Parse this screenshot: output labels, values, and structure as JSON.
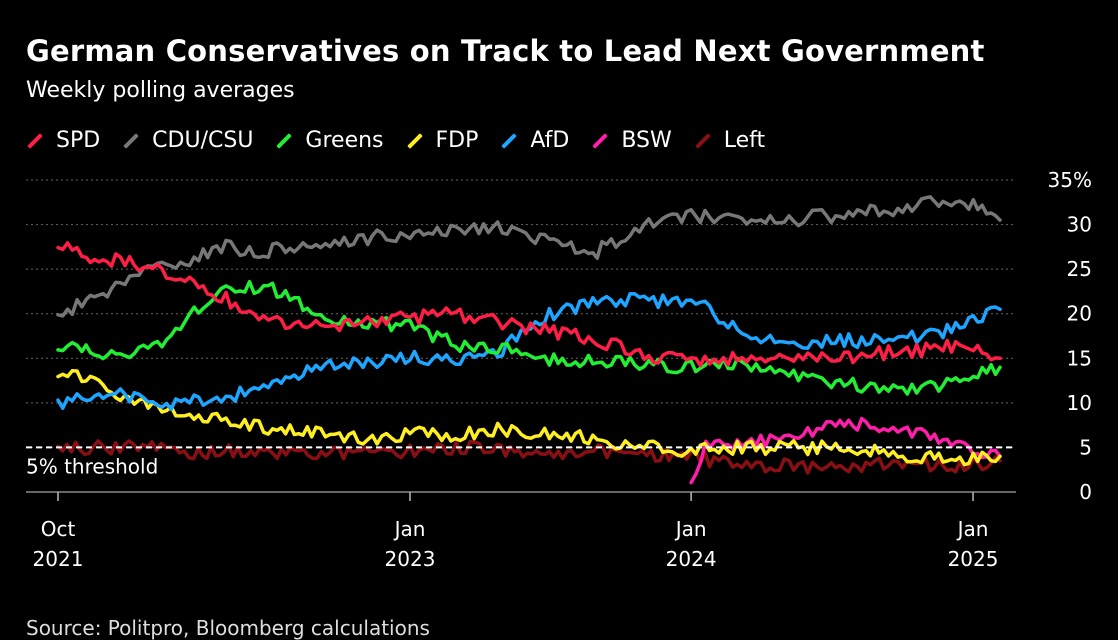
{
  "title": "German Conservatives on Track to Lead Next Government",
  "subtitle": "Weekly polling averages",
  "source": "Source: Politpro, Bloomberg calculations",
  "colors": {
    "SPD": "#ff1e46",
    "CDU/CSU": "#777777",
    "Greens": "#22ee33",
    "FDP": "#ffee22",
    "AfD": "#1ea5ff",
    "BSW": "#ff1eaa",
    "Left": "#8a0f14"
  },
  "chart_data": {
    "type": "line",
    "title": "German Conservatives on Track to Lead Next Government",
    "subtitle": "Weekly polling averages",
    "xlim": [
      "2021-10-01",
      "2025-02-15"
    ],
    "ylim": [
      0,
      35
    ],
    "y_ticks": [
      0,
      5,
      10,
      15,
      20,
      25,
      30,
      35
    ],
    "y_tick_labels": [
      "0",
      "5",
      "10",
      "15",
      "20",
      "25",
      "30",
      "35%"
    ],
    "x_ticks": [
      {
        "date": "2021-10-01",
        "label": "Oct",
        "year": "2021"
      },
      {
        "date": "2023-01-01",
        "label": "Jan",
        "year": "2023"
      },
      {
        "date": "2024-01-01",
        "label": "Jan",
        "year": "2024"
      },
      {
        "date": "2025-01-01",
        "label": "Jan",
        "year": "2025"
      }
    ],
    "grid": true,
    "legend_position": "top-left",
    "annotations": [
      {
        "text": "5% threshold",
        "y": 5
      }
    ],
    "series": [
      {
        "name": "SPD",
        "points": [
          [
            "2021-10-01",
            28
          ],
          [
            "2021-11-01",
            26.5
          ],
          [
            "2021-12-15",
            26
          ],
          [
            "2022-02-01",
            25
          ],
          [
            "2022-03-15",
            24
          ],
          [
            "2022-05-01",
            22
          ],
          [
            "2022-07-01",
            19
          ],
          [
            "2022-09-01",
            18.5
          ],
          [
            "2022-11-01",
            19
          ],
          [
            "2023-01-01",
            19.5
          ],
          [
            "2023-03-01",
            20
          ],
          [
            "2023-05-01",
            19
          ],
          [
            "2023-07-01",
            18
          ],
          [
            "2023-09-01",
            17
          ],
          [
            "2023-11-01",
            15.5
          ],
          [
            "2024-01-01",
            14.5
          ],
          [
            "2024-03-01",
            15
          ],
          [
            "2024-05-01",
            15.5
          ],
          [
            "2024-07-01",
            15
          ],
          [
            "2024-09-01",
            15.5
          ],
          [
            "2024-11-01",
            16
          ],
          [
            "2024-12-15",
            16.5
          ],
          [
            "2025-02-05",
            15
          ]
        ]
      },
      {
        "name": "CDU/CSU",
        "points": [
          [
            "2021-10-01",
            20
          ],
          [
            "2021-11-01",
            21
          ],
          [
            "2021-12-15",
            23
          ],
          [
            "2022-02-01",
            25.5
          ],
          [
            "2022-03-15",
            26
          ],
          [
            "2022-05-01",
            27.5
          ],
          [
            "2022-07-01",
            27
          ],
          [
            "2022-09-01",
            28
          ],
          [
            "2022-11-01",
            28.5
          ],
          [
            "2023-01-01",
            29
          ],
          [
            "2023-03-01",
            29.5
          ],
          [
            "2023-05-01",
            29.5
          ],
          [
            "2023-07-01",
            28
          ],
          [
            "2023-09-01",
            27
          ],
          [
            "2023-11-01",
            30
          ],
          [
            "2024-01-01",
            31
          ],
          [
            "2024-03-01",
            30.5
          ],
          [
            "2024-05-01",
            30.5
          ],
          [
            "2024-07-01",
            31
          ],
          [
            "2024-09-01",
            31.5
          ],
          [
            "2024-11-01",
            32.5
          ],
          [
            "2024-12-15",
            33
          ],
          [
            "2025-02-05",
            30.5
          ]
        ]
      },
      {
        "name": "Greens",
        "points": [
          [
            "2021-10-01",
            16
          ],
          [
            "2021-11-01",
            16
          ],
          [
            "2021-12-15",
            15.5
          ],
          [
            "2022-02-01",
            16
          ],
          [
            "2022-03-15",
            19
          ],
          [
            "2022-05-01",
            23
          ],
          [
            "2022-07-01",
            23
          ],
          [
            "2022-09-01",
            20
          ],
          [
            "2022-11-01",
            19
          ],
          [
            "2023-01-01",
            18.5
          ],
          [
            "2023-03-01",
            16.5
          ],
          [
            "2023-05-01",
            16
          ],
          [
            "2023-07-01",
            15
          ],
          [
            "2023-09-01",
            14.5
          ],
          [
            "2023-11-01",
            14.5
          ],
          [
            "2024-01-01",
            14
          ],
          [
            "2024-03-01",
            14.5
          ],
          [
            "2024-05-01",
            13.5
          ],
          [
            "2024-07-01",
            12.5
          ],
          [
            "2024-09-01",
            11.5
          ],
          [
            "2024-11-01",
            11.5
          ],
          [
            "2024-12-15",
            13
          ],
          [
            "2025-02-05",
            14
          ]
        ]
      },
      {
        "name": "FDP",
        "points": [
          [
            "2021-10-01",
            13.5
          ],
          [
            "2021-11-01",
            13
          ],
          [
            "2021-12-15",
            11
          ],
          [
            "2022-02-01",
            10
          ],
          [
            "2022-03-15",
            9
          ],
          [
            "2022-05-01",
            8
          ],
          [
            "2022-07-01",
            7
          ],
          [
            "2022-09-01",
            6.5
          ],
          [
            "2022-11-01",
            6
          ],
          [
            "2023-01-01",
            6.5
          ],
          [
            "2023-03-01",
            6.5
          ],
          [
            "2023-05-01",
            7
          ],
          [
            "2023-07-01",
            6.5
          ],
          [
            "2023-09-01",
            6
          ],
          [
            "2023-11-01",
            5
          ],
          [
            "2024-01-01",
            4.5
          ],
          [
            "2024-03-01",
            5
          ],
          [
            "2024-05-01",
            5
          ],
          [
            "2024-07-01",
            5
          ],
          [
            "2024-09-01",
            4.5
          ],
          [
            "2024-11-01",
            4
          ],
          [
            "2024-12-15",
            3.5
          ],
          [
            "2025-02-05",
            4
          ]
        ]
      },
      {
        "name": "AfD",
        "points": [
          [
            "2021-10-01",
            10
          ],
          [
            "2021-11-01",
            10.5
          ],
          [
            "2021-12-15",
            11
          ],
          [
            "2022-02-01",
            10
          ],
          [
            "2022-03-15",
            10
          ],
          [
            "2022-05-01",
            10.5
          ],
          [
            "2022-07-01",
            12
          ],
          [
            "2022-09-01",
            14
          ],
          [
            "2022-11-01",
            14.5
          ],
          [
            "2023-01-01",
            15
          ],
          [
            "2023-03-01",
            15
          ],
          [
            "2023-05-01",
            16
          ],
          [
            "2023-07-01",
            20
          ],
          [
            "2023-09-01",
            21.5
          ],
          [
            "2023-11-01",
            21.5
          ],
          [
            "2024-01-01",
            21.5
          ],
          [
            "2024-03-01",
            18.5
          ],
          [
            "2024-05-01",
            16.5
          ],
          [
            "2024-07-01",
            17
          ],
          [
            "2024-09-01",
            17
          ],
          [
            "2024-11-01",
            17.5
          ],
          [
            "2024-12-15",
            18.5
          ],
          [
            "2025-02-05",
            20.5
          ]
        ]
      },
      {
        "name": "BSW",
        "points": [
          [
            "2024-01-01",
            0.5
          ],
          [
            "2024-01-20",
            5
          ],
          [
            "2024-03-01",
            5.5
          ],
          [
            "2024-05-01",
            6
          ],
          [
            "2024-07-01",
            7.5
          ],
          [
            "2024-09-01",
            7.5
          ],
          [
            "2024-11-01",
            6.5
          ],
          [
            "2024-12-15",
            5
          ],
          [
            "2025-02-05",
            4
          ]
        ]
      },
      {
        "name": "Left",
        "points": [
          [
            "2021-10-01",
            5
          ],
          [
            "2022-01-01",
            5
          ],
          [
            "2022-04-01",
            4.5
          ],
          [
            "2022-07-01",
            4.5
          ],
          [
            "2022-10-01",
            4.5
          ],
          [
            "2023-01-01",
            4.5
          ],
          [
            "2023-04-01",
            5
          ],
          [
            "2023-07-01",
            4.5
          ],
          [
            "2023-10-01",
            4.5
          ],
          [
            "2024-01-01",
            4
          ],
          [
            "2024-03-01",
            3
          ],
          [
            "2024-05-01",
            3
          ],
          [
            "2024-07-01",
            2.5
          ],
          [
            "2024-09-01",
            3
          ],
          [
            "2024-11-01",
            3
          ],
          [
            "2024-12-15",
            3
          ],
          [
            "2025-02-05",
            3.5
          ]
        ]
      }
    ]
  }
}
